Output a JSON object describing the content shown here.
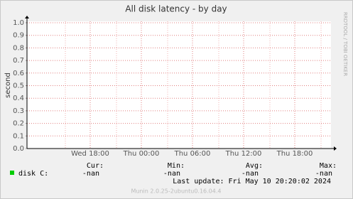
{
  "chart_data": {
    "type": "line",
    "title": "All disk latency - by day",
    "y_label": "second",
    "side_text": "RRDTOOL / TOBI OETIKER",
    "ylim": [
      0,
      1
    ],
    "yticks": [
      {
        "value": 0,
        "label": "0.0"
      },
      0.1,
      0.2,
      0.3,
      0.4,
      0.5,
      0.6,
      0.7,
      0.8,
      0.9,
      {
        "value": 1,
        "label": "1.0"
      }
    ],
    "xticks": [
      "Wed 18:00",
      "Thu 00:00",
      "Thu 06:00",
      "Thu 12:00",
      "Thu 18:00"
    ],
    "grid": true,
    "stat_headers": [
      "Cur:",
      "Min:",
      "Avg:",
      "Max:"
    ],
    "series": [
      {
        "name": "disk C:",
        "color": "#00cc00",
        "values": [],
        "stats": [
          "-nan",
          "-nan",
          "-nan",
          "-nan"
        ]
      }
    ],
    "last_update": "Last update: Fri May 10 20:20:02 2024",
    "footer": "Munin 2.0.25-2ubuntu0.16.04.4"
  }
}
